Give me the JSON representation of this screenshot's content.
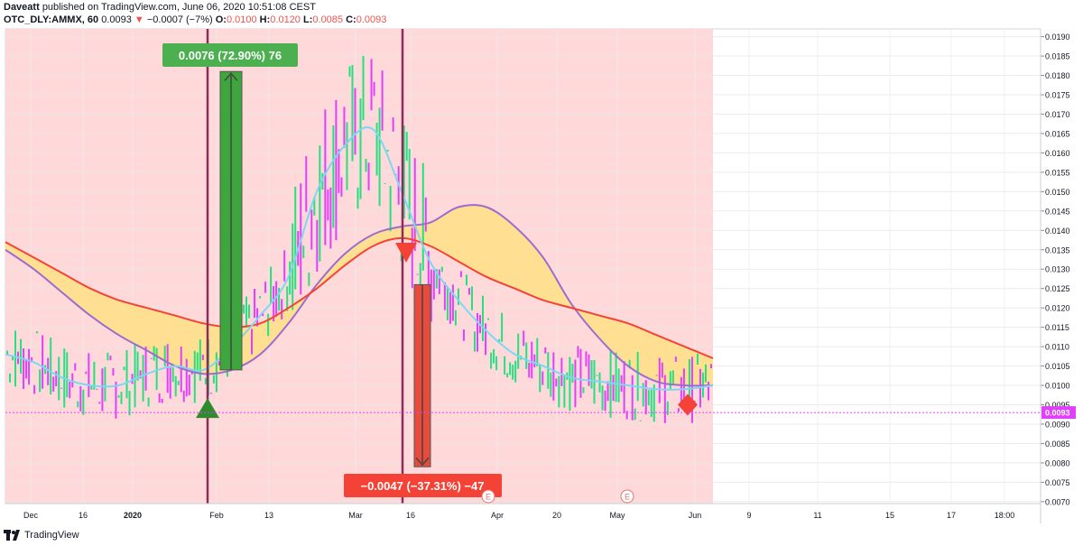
{
  "header": {
    "author": "Daveatt",
    "published_text": "published on TradingView.com, June 06, 2020 10:51:08 CEST",
    "symbol": "OTC_DLY:AMMX, 60",
    "last": "0.0093",
    "change_arrow": "▼",
    "change": "−0.0007 (−7%)",
    "o_label": "O:",
    "o": "0.0100",
    "h_label": "H:",
    "h": "0.0120",
    "l_label": "L:",
    "l": "0.0085",
    "c_label": "C:",
    "c": "0.0093"
  },
  "footer": {
    "brand": "TradingView",
    "logo_icon": "tradingview-logo-icon"
  },
  "colors": {
    "background_zone": "#ffd9d9",
    "bull": "#26e07f",
    "bear": "#e040fb",
    "band_fill": "#ffe08a",
    "ema_red": "#f44336",
    "ema_purple": "#9c6ccf",
    "ema_cyan": "#7ed6f2",
    "long_box": "#3da63d",
    "short_box": "#e84a3c",
    "vline": "#8e2a5c",
    "price_line": "#e040fb"
  },
  "chart_data": {
    "type": "candlestick",
    "title": "",
    "ylim": [
      0.00695,
      0.0192
    ],
    "y_ticks": [
      "0.0190",
      "0.0185",
      "0.0180",
      "0.0175",
      "0.0170",
      "0.0165",
      "0.0160",
      "0.0155",
      "0.0150",
      "0.0145",
      "0.0140",
      "0.0135",
      "0.0130",
      "0.0125",
      "0.0120",
      "0.0115",
      "0.0110",
      "0.0105",
      "0.0100",
      "0.0095",
      "0.0090",
      "0.0085",
      "0.0080",
      "0.0075",
      "0.0070"
    ],
    "x_ticks": [
      "Dec",
      "16",
      "2020",
      "Feb",
      "13",
      "Mar",
      "16",
      "Apr",
      "20",
      "May",
      "Jun",
      "9",
      "11",
      "15",
      "17",
      "18:00"
    ],
    "bold_x_ticks": [
      "2020"
    ],
    "last_price": "0.0093",
    "bands": {
      "red_ema": [
        0.0137,
        0.0133,
        0.0129,
        0.0125,
        0.0122,
        0.012,
        0.0118,
        0.0116,
        0.0115,
        0.0116,
        0.012,
        0.0125,
        0.0131,
        0.0136,
        0.0138,
        0.0136,
        0.0132,
        0.0128,
        0.0125,
        0.0122,
        0.012,
        0.0118,
        0.0116,
        0.0113,
        0.011,
        0.0107
      ],
      "purple_ema": [
        0.0135,
        0.013,
        0.0124,
        0.0118,
        0.0113,
        0.0109,
        0.0105,
        0.0103,
        0.0104,
        0.0108,
        0.0116,
        0.0126,
        0.0134,
        0.0139,
        0.0141,
        0.0142,
        0.0146,
        0.0146,
        0.0141,
        0.0133,
        0.0121,
        0.0112,
        0.0105,
        0.0101,
        0.01,
        0.01
      ],
      "cyan_ema": [
        0.0108,
        0.0106,
        0.0102,
        0.01,
        0.01,
        0.0103,
        0.0105,
        0.0104,
        0.011,
        0.0118,
        0.0128,
        0.015,
        0.0162,
        0.0166,
        0.015,
        0.0132,
        0.0122,
        0.0114,
        0.0108,
        0.0105,
        0.0102,
        0.0101,
        0.01,
        0.0099,
        0.0099,
        0.01
      ]
    },
    "long_position": {
      "label": "0.0076 (72.90%) 76",
      "entry": 0.0104,
      "target": 0.0181
    },
    "short_position": {
      "label": "−0.0047 (−37.31%) −47",
      "entry": 0.0126,
      "target": 0.0079
    },
    "earnings_markers": [
      "E",
      "E"
    ],
    "signals": [
      {
        "kind": "buy",
        "price": 0.0093
      },
      {
        "kind": "sell",
        "price": 0.0134
      },
      {
        "kind": "neutral",
        "price": 0.0095
      }
    ]
  }
}
